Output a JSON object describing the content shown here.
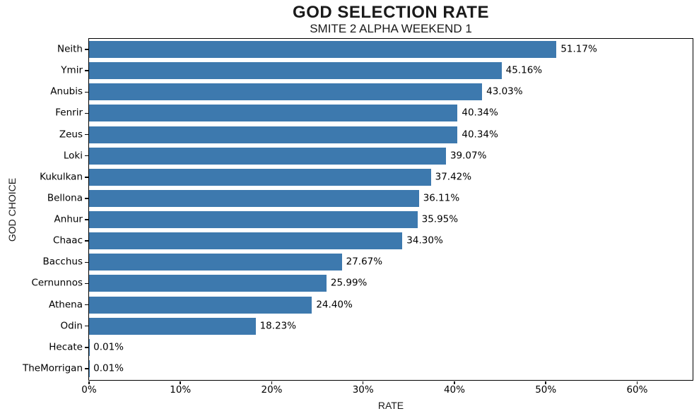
{
  "chart_data": {
    "type": "bar",
    "orientation": "horizontal",
    "title": "GOD SELECTION RATE",
    "subtitle": "SMITE 2 ALPHA WEEKEND 1",
    "xlabel": "RATE",
    "ylabel": "GOD CHOICE",
    "categories": [
      "Neith",
      "Ymir",
      "Anubis",
      "Fenrir",
      "Zeus",
      "Loki",
      "Kukulkan",
      "Bellona",
      "Anhur",
      "Chaac",
      "Bacchus",
      "Cernunnos",
      "Athena",
      "Odin",
      "Hecate",
      "TheMorrigan"
    ],
    "values": [
      51.17,
      45.16,
      43.03,
      40.34,
      40.34,
      39.07,
      37.42,
      36.11,
      35.95,
      34.3,
      27.67,
      25.99,
      24.4,
      18.23,
      0.01,
      0.01
    ],
    "value_labels": [
      "51.17%",
      "45.16%",
      "43.03%",
      "40.34%",
      "40.34%",
      "39.07%",
      "37.42%",
      "36.11%",
      "35.95%",
      "34.30%",
      "27.67%",
      "25.99%",
      "24.40%",
      "18.23%",
      "0.01%",
      "0.01%"
    ],
    "xlim": [
      0,
      66
    ],
    "xticks": [
      0,
      10,
      20,
      30,
      40,
      50,
      60
    ],
    "xtick_labels": [
      "0%",
      "10%",
      "20%",
      "30%",
      "40%",
      "50%",
      "60%"
    ],
    "bar_color": "#3d79ae",
    "grid": false,
    "legend": null,
    "background_color": "#ffffff",
    "text_color": "#000000"
  }
}
